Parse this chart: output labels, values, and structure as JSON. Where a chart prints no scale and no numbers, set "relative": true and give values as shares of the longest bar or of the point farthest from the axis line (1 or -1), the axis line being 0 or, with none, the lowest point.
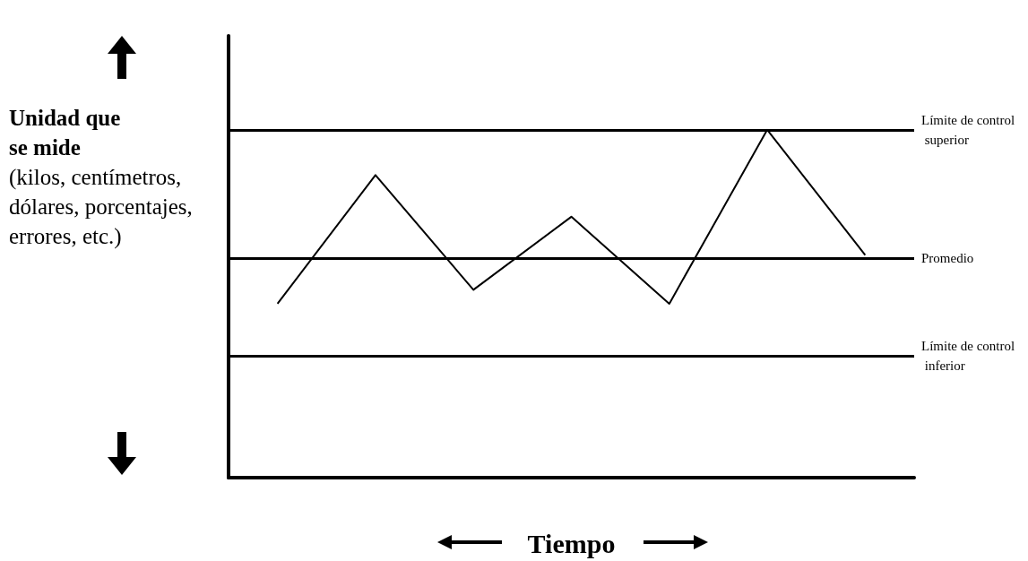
{
  "chart_data": {
    "type": "line",
    "relative": true,
    "xlabel": "Tiempo",
    "ylabel": "Unidad que se mide",
    "annotations": [
      "(kilos, centímetros, dólares, porcentajes, errores, etc.)"
    ],
    "categories": [
      null,
      null,
      null,
      null,
      null,
      null,
      null
    ],
    "series": [
      {
        "color": "#000000",
        "values": [
          0.5,
          0.87,
          0.54,
          0.75,
          0.5,
          1.0,
          0.64
        ]
      }
    ],
    "ref_lines": [
      {
        "axis": "y",
        "value": 1.0,
        "label": "Límite de control superior",
        "color": "#000000"
      },
      {
        "axis": "y",
        "value": 0.63,
        "label": "Promedio",
        "color": "#000000"
      },
      {
        "axis": "y",
        "value": 0.35,
        "label": "Límite de control inferior",
        "color": "#000000"
      }
    ],
    "marker": "none",
    "line_style": "solid",
    "grid": false
  }
}
